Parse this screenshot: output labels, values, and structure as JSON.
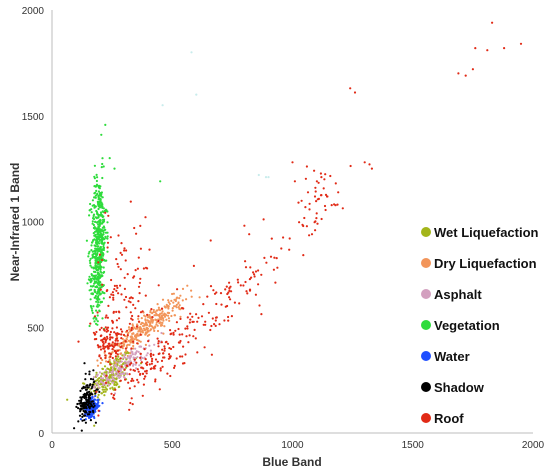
{
  "chart_data": {
    "type": "scatter",
    "title": "",
    "xlabel": "Blue Band",
    "ylabel": "Near-Infrared 1 Band",
    "xlim": [
      0,
      2000
    ],
    "ylim": [
      0,
      2000
    ],
    "xticks": [
      0,
      500,
      1000,
      1500,
      2000
    ],
    "yticks": [
      0,
      500,
      1000,
      1500,
      2000
    ],
    "grid": false,
    "legend_position": "right",
    "series": [
      {
        "name": "Wet Liquefaction",
        "color": "#a3b51a",
        "clusters": [
          {
            "x": 245,
            "y": 270,
            "sx": 45,
            "sy": 55,
            "rho": 0.6,
            "n": 200
          }
        ],
        "points": [
          [
            200,
            230
          ],
          [
            260,
            300
          ],
          [
            290,
            320
          ],
          [
            220,
            250
          ]
        ]
      },
      {
        "name": "Dry Liquefaction",
        "color": "#f2955a",
        "clusters": [
          {
            "x": 390,
            "y": 500,
            "sx": 80,
            "sy": 70,
            "rho": 0.9,
            "n": 320
          }
        ],
        "points": [
          [
            300,
            420
          ],
          [
            480,
            600
          ],
          [
            520,
            640
          ],
          [
            350,
            450
          ]
        ]
      },
      {
        "name": "Asphalt",
        "color": "#d3a0bf",
        "clusters": [
          {
            "x": 290,
            "y": 310,
            "sx": 55,
            "sy": 50,
            "rho": 0.85,
            "n": 160
          }
        ],
        "points": [
          [
            230,
            270
          ],
          [
            340,
            350
          ]
        ]
      },
      {
        "name": "Vegetation",
        "color": "#2edc3c",
        "clusters": [
          {
            "x": 195,
            "y": 920,
            "sx": 16,
            "sy": 150,
            "rho": 0.1,
            "n": 420
          },
          {
            "x": 185,
            "y": 720,
            "sx": 14,
            "sy": 90,
            "rho": 0,
            "n": 120
          }
        ],
        "points": [
          [
            205,
            1410
          ],
          [
            240,
            1300
          ],
          [
            215,
            1260
          ],
          [
            260,
            1250
          ],
          [
            170,
            1100
          ],
          [
            220,
            1050
          ],
          [
            450,
            1190
          ]
        ]
      },
      {
        "name": "Water",
        "color": "#1f4fff",
        "clusters": [
          {
            "x": 165,
            "y": 120,
            "sx": 14,
            "sy": 20,
            "rho": 0.2,
            "n": 220
          }
        ],
        "points": []
      },
      {
        "name": "Shadow",
        "color": "#000000",
        "clusters": [
          {
            "x": 145,
            "y": 155,
            "sx": 18,
            "sy": 50,
            "rho": 0.3,
            "n": 160
          }
        ],
        "points": [
          [
            140,
            280
          ],
          [
            135,
            330
          ]
        ]
      },
      {
        "name": "Roof",
        "color": "#e12a16",
        "clusters": [
          {
            "x": 290,
            "y": 600,
            "sx": 60,
            "sy": 200,
            "rho": 0.2,
            "n": 160
          },
          {
            "x": 230,
            "y": 430,
            "sx": 25,
            "sy": 40,
            "rho": 0,
            "n": 80
          },
          {
            "x": 650,
            "y": 560,
            "sx": 170,
            "sy": 160,
            "rho": 0.9,
            "n": 160
          },
          {
            "x": 1120,
            "y": 1120,
            "sx": 50,
            "sy": 70,
            "rho": 0.4,
            "n": 45
          },
          {
            "x": 400,
            "y": 300,
            "sx": 120,
            "sy": 90,
            "rho": 0.8,
            "n": 70
          }
        ],
        "points": [
          [
            1830,
            1940
          ],
          [
            1760,
            1820
          ],
          [
            1810,
            1810
          ],
          [
            1880,
            1820
          ],
          [
            1950,
            1840
          ],
          [
            1690,
            1700
          ],
          [
            1720,
            1690
          ],
          [
            1750,
            1720
          ],
          [
            1240,
            1630
          ],
          [
            1260,
            1610
          ],
          [
            1320,
            1270
          ],
          [
            1300,
            1280
          ],
          [
            1330,
            1250
          ],
          [
            1090,
            1240
          ],
          [
            1120,
            1210
          ],
          [
            1000,
            1280
          ],
          [
            1060,
            1260
          ],
          [
            880,
            1010
          ],
          [
            800,
            980
          ],
          [
            820,
            940
          ],
          [
            1010,
            1190
          ],
          [
            1180,
            1180
          ],
          [
            660,
            910
          ],
          [
            590,
            790
          ],
          [
            520,
            680
          ]
        ]
      }
    ],
    "faint_points": [
      {
        "color": "#c8ecec",
        "points": [
          [
            460,
            1550
          ],
          [
            600,
            1600
          ],
          [
            580,
            1800
          ],
          [
            900,
            1210
          ],
          [
            860,
            1220
          ],
          [
            890,
            1210
          ]
        ]
      }
    ]
  }
}
